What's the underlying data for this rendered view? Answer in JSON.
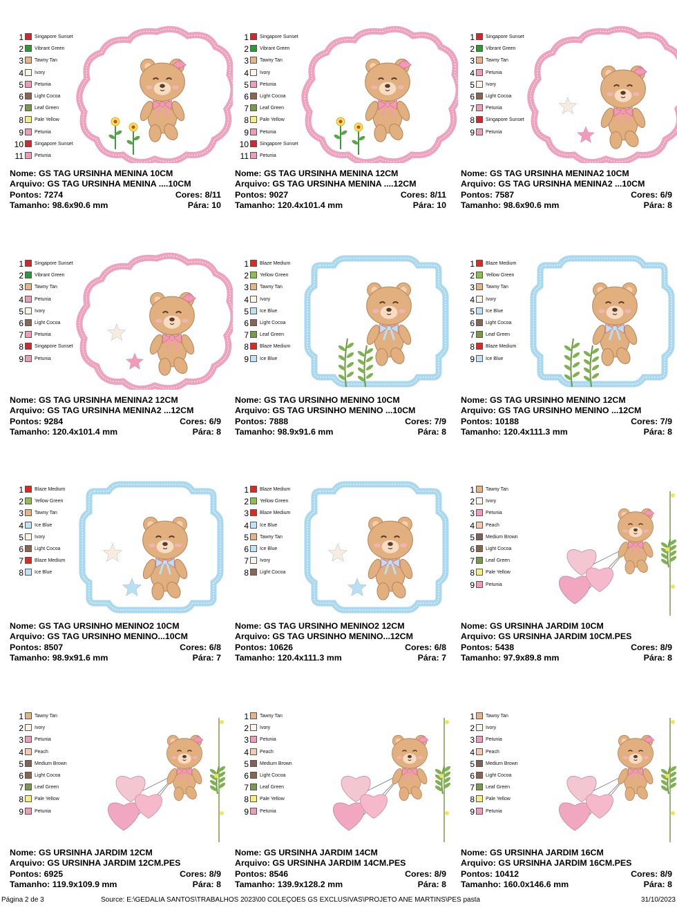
{
  "palette": {
    "Singapore Sunset": "#d8252b",
    "Vibrant Green": "#2d9a3a",
    "Tawny Tan": "#e6b382",
    "Ivory": "#fbf3e3",
    "Petunia": "#f09bb8",
    "Light Cocoa": "#8a6650",
    "Leaf Green": "#7a9a4a",
    "Pale Yellow": "#f4ef7a",
    "Blaze Medium": "#e4261f",
    "Yellow Green": "#8cc04a",
    "Ice Blue": "#bfe3f6",
    "Peach": "#f6c9ad",
    "Medium Brown": "#806256"
  },
  "labels": {
    "nome": "Nome:",
    "arquivo": "Arquivo:",
    "pontos": "Pontos:",
    "tamanho": "Tamanho:",
    "cores": "Cores:",
    "paradas": "Pára:"
  },
  "designs": [
    {
      "art": "girl-scallop-flowers",
      "colors": [
        "Singapore Sunset",
        "Vibrant Green",
        "Tawny Tan",
        "Ivory",
        "Petunia",
        "Light Cocoa",
        "Leaf Green",
        "Pale Yellow",
        "Petunia",
        "Singapore Sunset",
        "Petunia"
      ],
      "nome": "GS TAG URSINHA MENINA 10CM",
      "arquivo": "GS TAG URSINHA MENINA ....10CM",
      "pontos": "7274",
      "cores": "8/11",
      "tamanho": "98.6x90.6 mm",
      "paradas": "10"
    },
    {
      "art": "girl-scallop-flowers",
      "colors": [
        "Singapore Sunset",
        "Vibrant Green",
        "Tawny Tan",
        "Ivory",
        "Petunia",
        "Light Cocoa",
        "Leaf Green",
        "Pale Yellow",
        "Petunia",
        "Singapore Sunset",
        "Petunia"
      ],
      "nome": "GS TAG URSINHA MENINA 12CM",
      "arquivo": "GS TAG URSINHA MENINA ....12CM",
      "pontos": "9027",
      "cores": "8/11",
      "tamanho": "120.4x101.4 mm",
      "paradas": "10"
    },
    {
      "art": "girl-scallop-stars",
      "colors": [
        "Singapore Sunset",
        "Vibrant Green",
        "Tawny Tan",
        "Petunia",
        "Ivory",
        "Light Cocoa",
        "Petunia",
        "Singapore Sunset",
        "Petunia"
      ],
      "nome": "GS TAG URSINHA MENINA2 10CM",
      "arquivo": "GS TAG URSINHA MENINA2 ...10CM",
      "pontos": "7587",
      "cores": "6/9",
      "tamanho": "98.6x90.6 mm",
      "paradas": "8"
    },
    {
      "art": "girl-scallop-stars",
      "colors": [
        "Singapore Sunset",
        "Vibrant Green",
        "Tawny Tan",
        "Petunia",
        "Ivory",
        "Light Cocoa",
        "Petunia",
        "Singapore Sunset",
        "Petunia"
      ],
      "nome": "GS TAG URSINHA MENINA2 12CM",
      "arquivo": "GS TAG URSINHA MENINA2 ...12CM",
      "pontos": "9284",
      "cores": "6/9",
      "tamanho": "120.4x101.4 mm",
      "paradas": "8"
    },
    {
      "art": "boy-frame-plants",
      "colors": [
        "Blaze Medium",
        "Yellow Green",
        "Tawny Tan",
        "Ivory",
        "Ice Blue",
        "Light Cocoa",
        "Leaf Green",
        "Blaze Medium",
        "Ice Blue"
      ],
      "nome": "GS TAG URSINHO MENINO 10CM",
      "arquivo": "GS TAG URSINHO MENINO ...10CM",
      "pontos": "7888",
      "cores": "7/9",
      "tamanho": "98.9x91.6 mm",
      "paradas": "8"
    },
    {
      "art": "boy-frame-plants",
      "colors": [
        "Blaze Medium",
        "Yellow Green",
        "Tawny Tan",
        "Ivory",
        "Ice Blue",
        "Light Cocoa",
        "Leaf Green",
        "Blaze Medium",
        "Ice Blue"
      ],
      "nome": "GS TAG URSINHO MENINO 12CM",
      "arquivo": "GS TAG URSINHO MENINO ...12CM",
      "pontos": "10188",
      "cores": "7/9",
      "tamanho": "120.4x111.3 mm",
      "paradas": "8"
    },
    {
      "art": "boy-frame-stars",
      "colors": [
        "Blaze Medium",
        "Yellow Green",
        "Tawny Tan",
        "Ice Blue",
        "Ivory",
        "Light Cocoa",
        "Blaze Medium",
        "Ice Blue"
      ],
      "nome": "GS TAG URSINHO MENINO2 10CM",
      "arquivo": "GS TAG URSINHO MENINO...10CM",
      "pontos": "8507",
      "cores": "6/8",
      "tamanho": "98.9x91.6 mm",
      "paradas": "7"
    },
    {
      "art": "boy-frame-stars",
      "colors": [
        "Blaze Medium",
        "Yellow Green",
        "Blaze Medium",
        "Ice Blue",
        "Tawny Tan",
        "Ice Blue",
        "Ivory",
        "Light Cocoa"
      ],
      "nome": "GS TAG URSINHO MENINO2 12CM",
      "arquivo": "GS TAG URSINHO MENINO...12CM",
      "pontos": "10626",
      "cores": "6/8",
      "tamanho": "120.4x111.3 mm",
      "paradas": "7"
    },
    {
      "art": "garden-balloons",
      "colors": [
        "Tawny Tan",
        "Ivory",
        "Petunia",
        "Peach",
        "Medium Brown",
        "Light Cocoa",
        "Leaf Green",
        "Pale Yellow",
        "Petunia"
      ],
      "nome": "GS URSINHA JARDIM 10CM",
      "arquivo": "GS URSINHA JARDIM 10CM.PES",
      "pontos": "5438",
      "cores": "8/9",
      "tamanho": "97.9x89.8 mm",
      "paradas": "8"
    },
    {
      "art": "garden-balloons",
      "colors": [
        "Tawny Tan",
        "Ivory",
        "Petunia",
        "Peach",
        "Medium Brown",
        "Light Cocoa",
        "Leaf Green",
        "Pale Yellow",
        "Petunia"
      ],
      "nome": "GS URSINHA JARDIM 12CM",
      "arquivo": "GS URSINHA JARDIM 12CM.PES",
      "pontos": "6925",
      "cores": "8/9",
      "tamanho": "119.9x109.9 mm",
      "paradas": "8"
    },
    {
      "art": "garden-balloons",
      "colors": [
        "Tawny Tan",
        "Ivory",
        "Petunia",
        "Peach",
        "Medium Brown",
        "Light Cocoa",
        "Leaf Green",
        "Pale Yellow",
        "Petunia"
      ],
      "nome": "GS URSINHA JARDIM 14CM",
      "arquivo": "GS URSINHA JARDIM 14CM.PES",
      "pontos": "8546",
      "cores": "8/9",
      "tamanho": "139.9x128.2 mm",
      "paradas": "8"
    },
    {
      "art": "garden-balloons",
      "colors": [
        "Tawny Tan",
        "Ivory",
        "Petunia",
        "Peach",
        "Medium Brown",
        "Light Cocoa",
        "Leaf Green",
        "Pale Yellow",
        "Petunia"
      ],
      "nome": "GS URSINHA JARDIM 16CM",
      "arquivo": "GS URSINHA JARDIM 16CM.PES",
      "pontos": "10412",
      "cores": "8/9",
      "tamanho": "160.0x146.6 mm",
      "paradas": "8"
    }
  ],
  "footer": {
    "page": "Página 2 de 3",
    "source": "Source: E:\\GEDALIA SANTOS\\TRABALHOS 2023\\00 COLEÇOES GS EXCLUSIVAS\\PROJETO ANE MARTINS\\PES pasta",
    "date": "31/10/2023"
  }
}
